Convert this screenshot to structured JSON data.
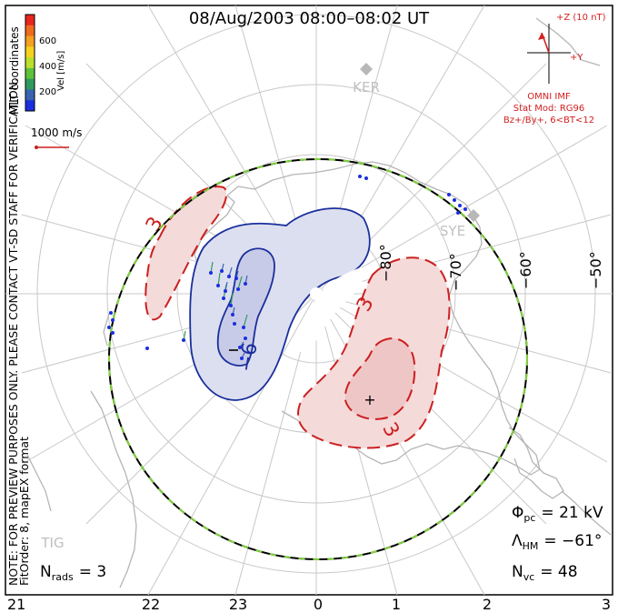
{
  "title": "08/Aug/2003 08:00–08:02 UT",
  "side_notes": {
    "coordinates": "MLT coordinates",
    "verification": "NOTE: FOR PREVIEW PURPOSES ONLY. PLEASE CONTACT VT-SD STAFF FOR VERIFICATION.",
    "fit": "FitOrder: 8, mapEX format"
  },
  "color_bar": {
    "label": "Vel [m/s]",
    "ticks": [
      "600",
      "400",
      "200"
    ],
    "colors": [
      "#e8261e",
      "#f06a1e",
      "#f4a020",
      "#f5d21c",
      "#b8e02c",
      "#5ec23a",
      "#2f9a5c",
      "#3a64b0",
      "#1a2ee0"
    ]
  },
  "reference_vector": "1000 m/s",
  "imf": {
    "bz_label": "+Z (10 nT)",
    "by_label": "+Y",
    "source": "OMNI IMF",
    "model": "Stat Mod: RG96",
    "condition": "Bz+/By+, 6<BT<12",
    "color": "#d42020"
  },
  "stations": [
    "KER",
    "SYE",
    "TIG"
  ],
  "latitude_labels": [
    "−80°",
    "−70°",
    "−60°",
    "−50°"
  ],
  "contour_labels": [
    "3",
    "3",
    "3",
    "−6"
  ],
  "mlt_labels": [
    "21",
    "22",
    "23",
    "0",
    "1",
    "2",
    "3"
  ],
  "stats": {
    "nrads_label": "N",
    "nrads_sub": "rads",
    "nrads_value": "= 3",
    "phi_label": "Φ",
    "phi_sub": "pc",
    "phi_value": "= 21 kV",
    "lambda_label": "Λ",
    "lambda_sub": "HM",
    "lambda_value": "= −61°",
    "nvc_label": "N",
    "nvc_sub": "vc",
    "nvc_value": "= 48"
  },
  "colors": {
    "negative_cell": "#1b2f9c",
    "negative_fill": "#dcdff0",
    "positive_cell": "#cc1f1f",
    "positive_fill": "#f5dada",
    "boundary_green": "#7fd13b",
    "coast": "#b5b5b5",
    "grid": "#c8c8c8"
  }
}
